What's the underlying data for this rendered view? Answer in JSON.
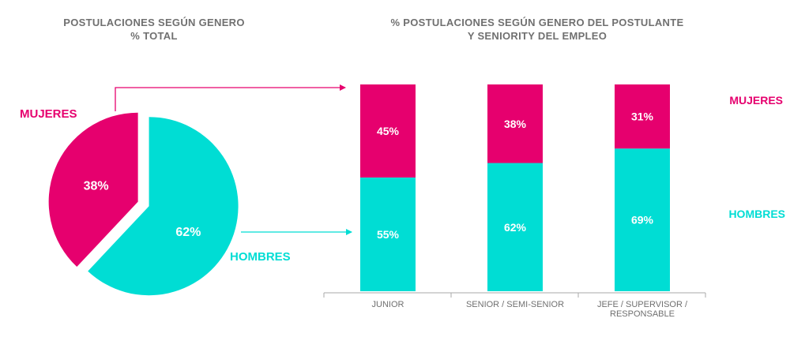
{
  "colors": {
    "women": "#E6006E",
    "men": "#00DDD4",
    "text_gray": "#707070",
    "axis": "#A8A8A8"
  },
  "pie_title": {
    "line1": "POSTULACIONES SEGÚN GENERO",
    "line2": "% TOTAL"
  },
  "bar_title": {
    "line1": "% POSTULACIONES SEGÚN GENERO DEL POSTULANTE",
    "line2": "Y SENIORITY DEL EMPLEO"
  },
  "pie_labels": {
    "women": "MUJERES",
    "men": "HOMBRES"
  },
  "legend": {
    "women": "MUJERES",
    "men": "HOMBRES"
  },
  "chart_data": [
    {
      "type": "pie",
      "title": "POSTULACIONES SEGÚN GENERO % TOTAL",
      "slices": [
        {
          "name": "MUJERES",
          "value": 38,
          "label": "38%"
        },
        {
          "name": "HOMBRES",
          "value": 62,
          "label": "62%"
        }
      ]
    },
    {
      "type": "bar",
      "stacked": true,
      "title": "% POSTULACIONES SEGÚN GENERO DEL POSTULANTE Y SENIORITY DEL EMPLEO",
      "categories": [
        [
          "JUNIOR"
        ],
        [
          "SENIOR / SEMI-SENIOR"
        ],
        [
          "JEFE / SUPERVISOR /",
          "RESPONSABLE"
        ]
      ],
      "series": [
        {
          "name": "HOMBRES",
          "values": [
            55,
            62,
            69
          ],
          "labels": [
            "55%",
            "62%",
            "69%"
          ]
        },
        {
          "name": "MUJERES",
          "values": [
            45,
            38,
            31
          ],
          "labels": [
            "45%",
            "38%",
            "31%"
          ]
        }
      ],
      "ylim": [
        0,
        100
      ],
      "legend_position": "right",
      "grid": false
    }
  ]
}
